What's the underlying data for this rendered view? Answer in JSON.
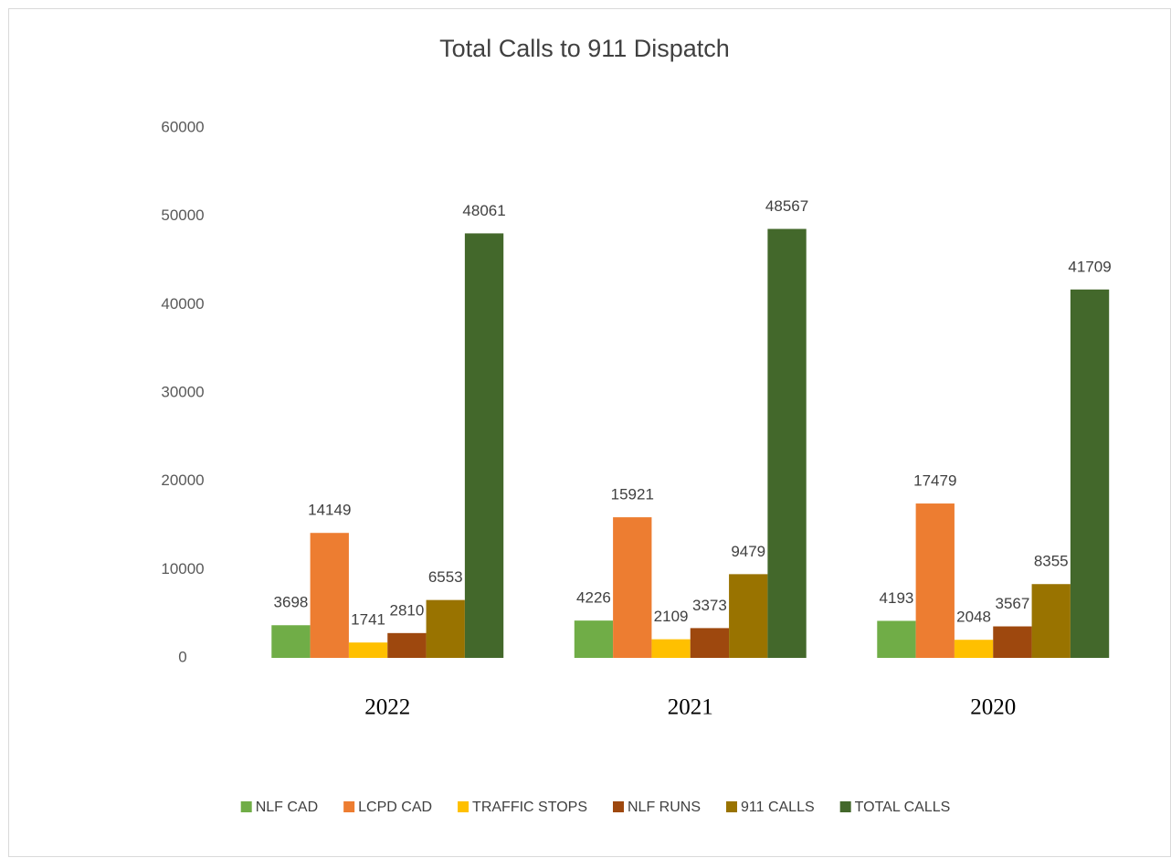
{
  "chart_data": {
    "type": "bar",
    "title": "Total Calls to 911 Dispatch",
    "categories": [
      "2022",
      "2021",
      "2020"
    ],
    "series": [
      {
        "name": "NLF CAD",
        "color": "#70ad47",
        "values": [
          3698,
          4226,
          4193
        ]
      },
      {
        "name": "LCPD CAD",
        "color": "#ed7d31",
        "values": [
          14149,
          15921,
          17479
        ]
      },
      {
        "name": "TRAFFIC STOPS",
        "color": "#ffc000",
        "values": [
          1741,
          2109,
          2048
        ]
      },
      {
        "name": "NLF RUNS",
        "color": "#9e480e",
        "values": [
          2810,
          3373,
          3567
        ]
      },
      {
        "name": "911 CALLS",
        "color": "#997300",
        "values": [
          6553,
          9479,
          8355
        ]
      },
      {
        "name": "TOTAL CALLS",
        "color": "#43682b",
        "values": [
          48061,
          48567,
          41709
        ]
      }
    ],
    "ylim": [
      0,
      60000
    ],
    "yticks": [
      0,
      10000,
      20000,
      30000,
      40000,
      50000,
      60000
    ],
    "grid": false,
    "legend": "bottom"
  }
}
